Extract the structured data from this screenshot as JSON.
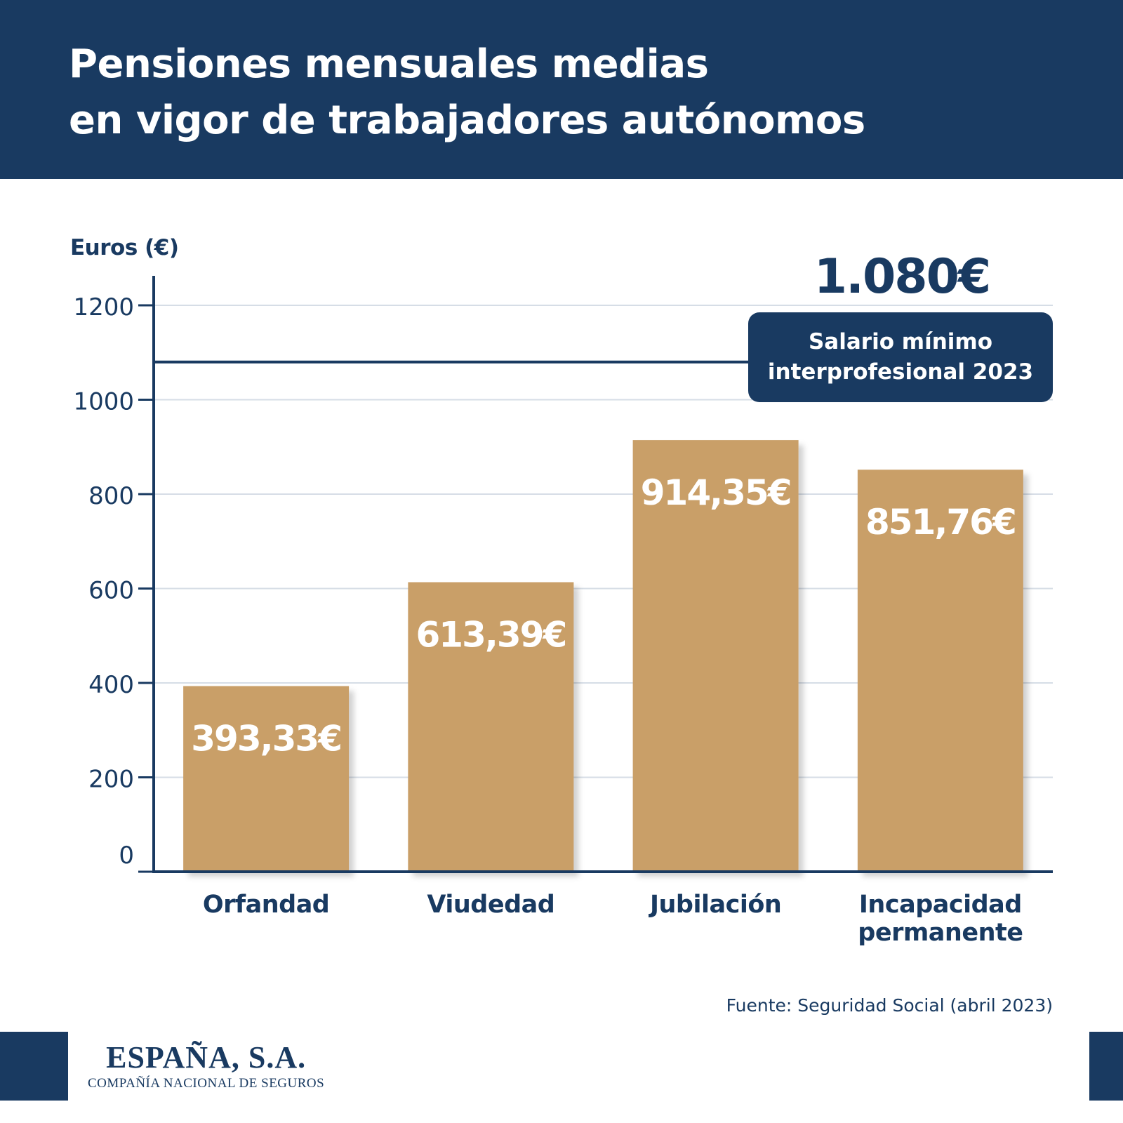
{
  "header": {
    "title_line1": "Pensiones mensuales medias",
    "title_line2": "en vigor de trabajadores autónomos"
  },
  "chart_data": {
    "type": "bar",
    "ylabel": "Euros (€)",
    "categories": [
      "Orfandad",
      "Viudedad",
      "Jubilación",
      "Incapacidad permanente"
    ],
    "category_lines": [
      [
        "Orfandad"
      ],
      [
        "Viudedad"
      ],
      [
        "Jubilación"
      ],
      [
        "Incapacidad",
        "permanente"
      ]
    ],
    "values": [
      393.33,
      613.39,
      914.35,
      851.76
    ],
    "value_labels": [
      "393,33€",
      "613,39€",
      "914,35€",
      "851,76€"
    ],
    "yticks": [
      0,
      200,
      400,
      600,
      800,
      1000,
      1200
    ],
    "ylim": [
      0,
      1220
    ],
    "grid": true,
    "reference_line": {
      "value": 1080,
      "value_label": "1.080€",
      "label_line1": "Salario mínimo",
      "label_line2": "interprofesional 2023"
    },
    "colors": {
      "bar": "#c99f67",
      "axis": "#193a61",
      "grid": "#d6dde6",
      "text": "#193a61"
    }
  },
  "source": "Fuente: Seguridad Social (abril 2023)",
  "logo": {
    "name": "ESPAÑA, S.A.",
    "subtitle": "COMPAÑÍA NACIONAL DE SEGUROS"
  }
}
